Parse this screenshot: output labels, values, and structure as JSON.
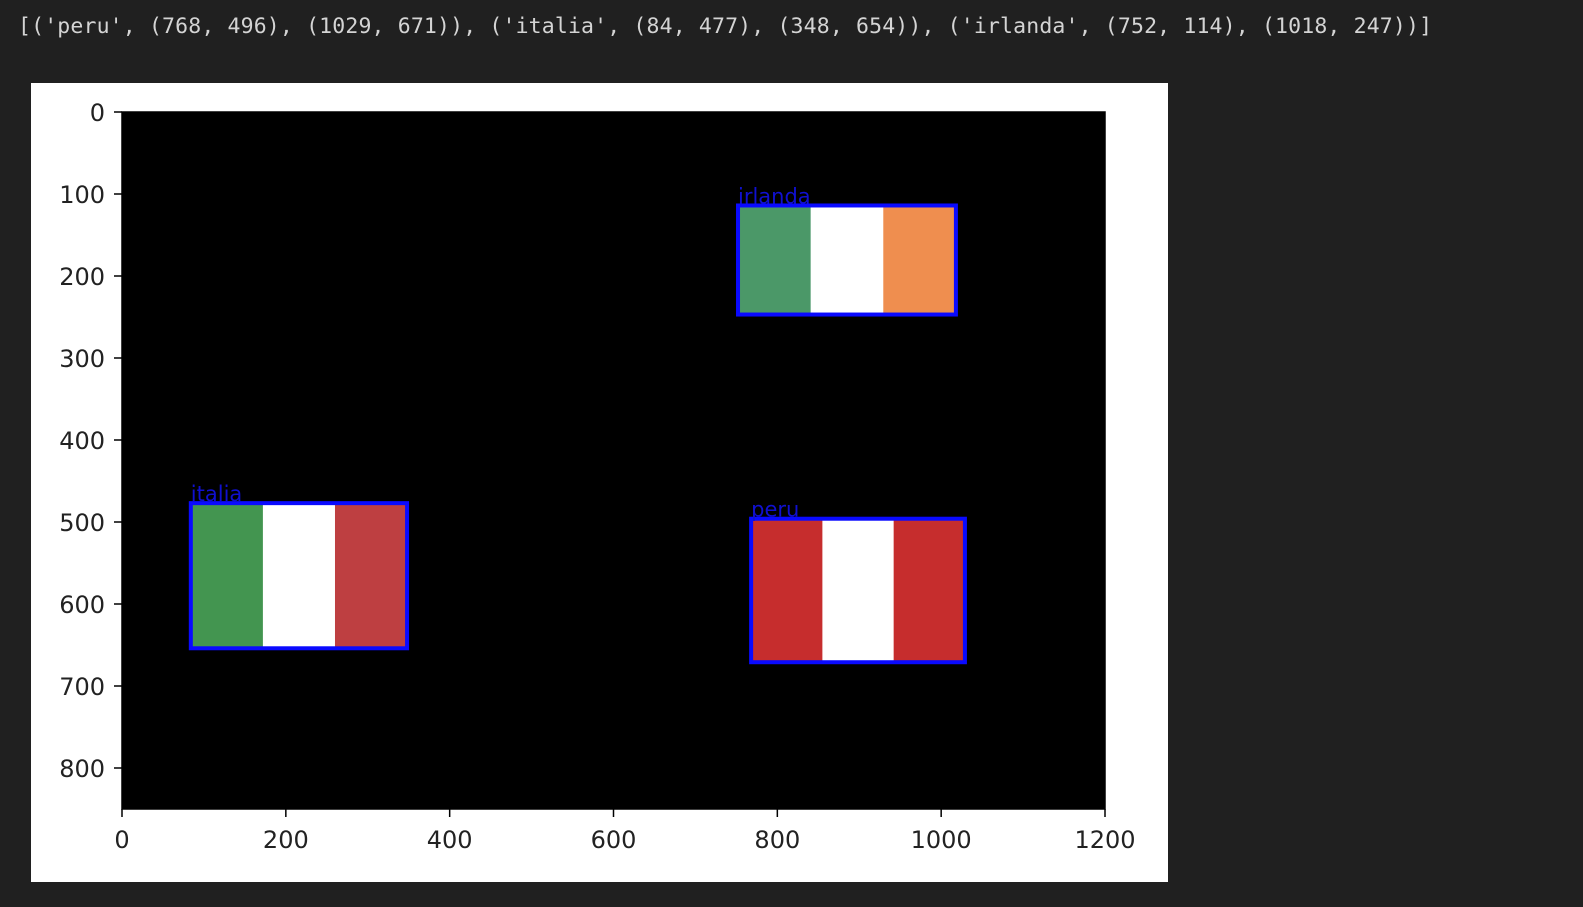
{
  "cell_output": {
    "text": "[('peru', (768, 496), (1029, 671)), ('italia', (84, 477), (348, 654)), ('irlanda', (752, 114), (1018, 247))]"
  },
  "colors": {
    "background": "#202020",
    "figure": "#ffffff",
    "plot_area": "#000000",
    "box_outline": "#0a0aff",
    "label_text": "#1010d0"
  },
  "chart_data": {
    "type": "image",
    "xlim": [
      0,
      1200
    ],
    "ylim": [
      850,
      0
    ],
    "x_ticks": [
      "0",
      "200",
      "400",
      "600",
      "800",
      "1000",
      "1200"
    ],
    "y_ticks": [
      "0",
      "100",
      "200",
      "300",
      "400",
      "500",
      "600",
      "700",
      "800"
    ],
    "detections": [
      {
        "label": "peru",
        "top_left": [
          768,
          496
        ],
        "bottom_right": [
          1029,
          671
        ],
        "stripes": [
          "#c62d2d",
          "#ffffff",
          "#c62d2d"
        ]
      },
      {
        "label": "italia",
        "top_left": [
          84,
          477
        ],
        "bottom_right": [
          348,
          654
        ],
        "stripes": [
          "#439550",
          "#ffffff",
          "#be3f41"
        ]
      },
      {
        "label": "irlanda",
        "top_left": [
          752,
          114
        ],
        "bottom_right": [
          1018,
          247
        ],
        "stripes": [
          "#4b9868",
          "#ffffff",
          "#ef8e4f"
        ]
      }
    ]
  }
}
